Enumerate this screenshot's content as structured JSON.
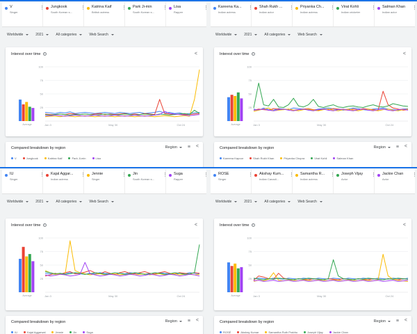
{
  "panels": [
    {
      "terms": [
        {
          "name": "V",
          "sub": "Singer",
          "color": "#4285f4"
        },
        {
          "name": "Jungkook",
          "sub": "South Korean s...",
          "color": "#ea4335"
        },
        {
          "name": "Katrina Kaif",
          "sub": "British actress",
          "color": "#fbbc04"
        },
        {
          "name": "Park Ji-min",
          "sub": "South Korean s...",
          "color": "#34a853"
        },
        {
          "name": "Lisa",
          "sub": "Rapper",
          "color": "#a142f4"
        }
      ],
      "filters": {
        "region": "Worldwide",
        "year": "2021",
        "category": "All categories",
        "search": "Web Search"
      },
      "iot_title": "Interest over time",
      "cbr_title": "Compared breakdown by region",
      "region_label": "Region",
      "chart_data": {
        "type": "line",
        "x_labels": [
          "Jan 3",
          "May 30",
          "Oct 24"
        ],
        "y_ticks": [
          "100",
          "75",
          "50",
          "25"
        ],
        "average_label": "Average",
        "averages": [
          18,
          14,
          16,
          12,
          11
        ],
        "series": [
          {
            "name": "V",
            "values": [
              16,
              15,
              14,
              16,
              15,
              17,
              14,
              15,
              16,
              15,
              14,
              15,
              16,
              15,
              14,
              16,
              15,
              14,
              15,
              16,
              14,
              15,
              16,
              18,
              15,
              16,
              14,
              15,
              13,
              14,
              15,
              16
            ]
          },
          {
            "name": "Jungkook",
            "values": [
              13,
              12,
              12,
              13,
              12,
              14,
              13,
              12,
              13,
              12,
              13,
              14,
              12,
              13,
              12,
              13,
              14,
              12,
              13,
              12,
              14,
              13,
              12,
              40,
              14,
              13,
              12,
              13,
              12,
              12,
              13,
              14
            ]
          },
          {
            "name": "Katrina Kaif",
            "values": [
              8,
              9,
              9,
              8,
              10,
              9,
              8,
              9,
              10,
              9,
              8,
              9,
              10,
              9,
              8,
              9,
              10,
              9,
              8,
              9,
              10,
              9,
              8,
              9,
              10,
              9,
              8,
              9,
              10,
              9,
              40,
              95
            ]
          },
          {
            "name": "Park Ji-min",
            "values": [
              12,
              11,
              12,
              13,
              12,
              11,
              12,
              12,
              13,
              12,
              11,
              12,
              13,
              12,
              11,
              12,
              13,
              12,
              11,
              12,
              13,
              12,
              11,
              13,
              12,
              11,
              12,
              13,
              14,
              12,
              20,
              14
            ]
          },
          {
            "name": "Lisa",
            "values": [
              10,
              10,
              11,
              10,
              9,
              10,
              11,
              10,
              9,
              10,
              11,
              10,
              9,
              10,
              11,
              10,
              9,
              10,
              11,
              10,
              9,
              10,
              11,
              12,
              18,
              14,
              13,
              12,
              11,
              10,
              11,
              12
            ]
          }
        ]
      }
    },
    {
      "terms": [
        {
          "name": "Kareena Ka...",
          "sub": "Indian actress",
          "color": "#4285f4"
        },
        {
          "name": "Shah Rukh ...",
          "sub": "Indian actor",
          "color": "#ea4335"
        },
        {
          "name": "Priyanka Ch...",
          "sub": "Indian actress",
          "color": "#fbbc04"
        },
        {
          "name": "Virat Kohli",
          "sub": "Indian cricketer",
          "color": "#34a853"
        },
        {
          "name": "Salman Khan",
          "sub": "Indian actor",
          "color": "#a142f4"
        }
      ],
      "filters": {
        "region": "Worldwide",
        "year": "2021",
        "category": "All categories",
        "search": "Web Search"
      },
      "iot_title": "Interest over time",
      "cbr_title": "Compared breakdown by region",
      "region_label": "Region",
      "chart_data": {
        "type": "line",
        "x_labels": [
          "Jan 3",
          "May 30",
          "Oct 24"
        ],
        "y_ticks": [
          "100",
          "75",
          "50",
          "25"
        ],
        "average_label": "Average",
        "averages": [
          20,
          22,
          21,
          24,
          19
        ],
        "series": [
          {
            "name": "Kareena Kapoor",
            "values": [
              22,
              20,
              24,
              21,
              20,
              23,
              22,
              21,
              24,
              23,
              22,
              21,
              20,
              22,
              23,
              24,
              22,
              21,
              20,
              22,
              24,
              23,
              21,
              20,
              22,
              23,
              24,
              22,
              21,
              20,
              22,
              23
            ]
          },
          {
            "name": "Shah Rukh Khan",
            "values": [
              20,
              22,
              21,
              20,
              23,
              22,
              21,
              22,
              20,
              21,
              22,
              23,
              21,
              20,
              22,
              21,
              23,
              22,
              21,
              20,
              22,
              21,
              23,
              22,
              21,
              20,
              55,
              30,
              24,
              22,
              20,
              21
            ]
          },
          {
            "name": "Priyanka Chopra",
            "values": [
              18,
              20,
              22,
              24,
              19,
              20,
              21,
              22,
              20,
              19,
              21,
              22,
              20,
              19,
              21,
              22,
              20,
              19,
              21,
              22,
              20,
              19,
              21,
              22,
              20,
              19,
              21,
              22,
              20,
              19,
              21,
              22
            ]
          },
          {
            "name": "Virat Kohli",
            "values": [
              24,
              70,
              30,
              28,
              40,
              26,
              25,
              30,
              42,
              28,
              26,
              30,
              40,
              27,
              25,
              28,
              30,
              26,
              25,
              27,
              28,
              26,
              25,
              28,
              30,
              27,
              26,
              28,
              32,
              30,
              28,
              27
            ]
          },
          {
            "name": "Salman Khan",
            "values": [
              20,
              21,
              22,
              20,
              19,
              21,
              22,
              20,
              19,
              21,
              22,
              20,
              19,
              21,
              22,
              20,
              19,
              21,
              22,
              20,
              19,
              21,
              22,
              20,
              19,
              21,
              22,
              20,
              19,
              21,
              22,
              20
            ]
          }
        ]
      }
    },
    {
      "terms": [
        {
          "name": "IU",
          "sub": "Singer",
          "color": "#4285f4"
        },
        {
          "name": "Kajal Aggar...",
          "sub": "Indian actress",
          "color": "#ea4335"
        },
        {
          "name": "Jennie",
          "sub": "Singer",
          "color": "#fbbc04"
        },
        {
          "name": "Jin",
          "sub": "South Korean s...",
          "color": "#34a853"
        },
        {
          "name": "Suga",
          "sub": "Rapper",
          "color": "#a142f4"
        }
      ],
      "filters": {
        "region": "Worldwide",
        "year": "2021",
        "category": "All categories",
        "search": "Web Search"
      },
      "iot_title": "Interest over time",
      "cbr_title": "Compared breakdown by region",
      "region_label": "Region",
      "chart_data": {
        "type": "line",
        "x_labels": [
          "Jan 3",
          "May 30",
          "Oct 24"
        ],
        "y_ticks": [
          "100",
          "75",
          "50",
          "25"
        ],
        "average_label": "Average",
        "averages": [
          28,
          38,
          30,
          32,
          26
        ],
        "series": [
          {
            "name": "IU",
            "values": [
              35,
              34,
              33,
              35,
              34,
              36,
              35,
              34,
              33,
              35,
              34,
              36,
              35,
              34,
              33,
              35,
              34,
              36,
              35,
              34,
              33,
              35,
              34,
              36,
              35,
              34,
              33,
              35,
              34,
              36,
              35,
              34
            ]
          },
          {
            "name": "Kajal Aggarwal",
            "values": [
              30,
              32,
              35,
              33,
              36,
              38,
              34,
              35,
              37,
              40,
              36,
              34,
              38,
              35,
              33,
              36,
              38,
              35,
              34,
              36,
              38,
              35,
              34,
              36,
              38,
              35,
              34,
              36,
              35,
              34,
              36,
              35
            ]
          },
          {
            "name": "Jennie",
            "values": [
              40,
              36,
              33,
              34,
              32,
              95,
              40,
              36,
              34,
              32,
              33,
              34,
              32,
              33,
              34,
              32,
              33,
              34,
              32,
              33,
              34,
              32,
              33,
              34,
              32,
              33,
              34,
              32,
              33,
              34,
              32,
              33
            ]
          },
          {
            "name": "Jin",
            "values": [
              38,
              36,
              34,
              35,
              33,
              34,
              36,
              35,
              33,
              34,
              36,
              35,
              33,
              34,
              36,
              35,
              33,
              34,
              36,
              35,
              33,
              34,
              36,
              35,
              33,
              34,
              36,
              35,
              33,
              34,
              36,
              88
            ]
          },
          {
            "name": "Suga",
            "values": [
              32,
              30,
              31,
              33,
              32,
              30,
              31,
              33,
              55,
              34,
              32,
              30,
              31,
              33,
              32,
              30,
              31,
              33,
              32,
              30,
              31,
              33,
              32,
              30,
              31,
              33,
              32,
              30,
              31,
              33,
              32,
              30
            ]
          }
        ]
      }
    },
    {
      "terms": [
        {
          "name": "ROSÉ",
          "sub": "Singer",
          "color": "#4285f4"
        },
        {
          "name": "Akshay Kum...",
          "sub": "Indian Canadi...",
          "color": "#ea4335"
        },
        {
          "name": "Samantha R...",
          "sub": "Indian actress",
          "color": "#fbbc04"
        },
        {
          "name": "Joseph Vijay",
          "sub": "Actor",
          "color": "#34a853"
        },
        {
          "name": "Jackie Chan",
          "sub": "Actor",
          "color": "#a142f4"
        }
      ],
      "filters": {
        "region": "Worldwide",
        "year": "2021",
        "category": "All categories",
        "search": "Web Search"
      },
      "iot_title": "Interest over time",
      "cbr_title": "Compared breakdown by region",
      "region_label": "Region",
      "chart_data": {
        "type": "line",
        "x_labels": [
          "Jan 3",
          "May 30",
          "Oct 24"
        ],
        "y_ticks": [
          "100",
          "75",
          "50",
          "25"
        ],
        "average_label": "Average",
        "averages": [
          25,
          22,
          24,
          20,
          21
        ],
        "series": [
          {
            "name": "ROSÉ",
            "values": [
              24,
              26,
              25,
              24,
              26,
              25,
              24,
              26,
              25,
              24,
              26,
              25,
              24,
              26,
              25,
              24,
              26,
              25,
              24,
              26,
              25,
              24,
              26,
              25,
              24,
              26,
              25,
              24,
              26,
              25,
              24,
              26
            ]
          },
          {
            "name": "Akshay Kumar",
            "values": [
              22,
              30,
              28,
              25,
              24,
              35,
              26,
              24,
              23,
              25,
              24,
              23,
              25,
              24,
              23,
              25,
              24,
              23,
              25,
              24,
              23,
              25,
              24,
              23,
              25,
              24,
              23,
              25,
              24,
              23,
              25,
              24
            ]
          },
          {
            "name": "Samantha Ruth Prabhu",
            "values": [
              20,
              22,
              21,
              24,
              36,
              22,
              21,
              23,
              22,
              21,
              23,
              22,
              21,
              23,
              22,
              21,
              23,
              22,
              21,
              23,
              22,
              21,
              23,
              22,
              21,
              23,
              70,
              30,
              24,
              22,
              21,
              20
            ]
          },
          {
            "name": "Joseph Vijay",
            "values": [
              26,
              24,
              23,
              25,
              24,
              26,
              25,
              24,
              23,
              25,
              24,
              26,
              25,
              24,
              23,
              25,
              60,
              30,
              25,
              24,
              23,
              25,
              24,
              26,
              25,
              24,
              23,
              25,
              24,
              26,
              25,
              24
            ]
          },
          {
            "name": "Jackie Chan",
            "values": [
              21,
              22,
              20,
              21,
              22,
              20,
              21,
              22,
              20,
              21,
              22,
              20,
              21,
              22,
              20,
              21,
              22,
              20,
              21,
              22,
              20,
              21,
              22,
              20,
              21,
              22,
              20,
              21,
              22,
              20,
              21,
              22
            ]
          }
        ]
      }
    }
  ]
}
